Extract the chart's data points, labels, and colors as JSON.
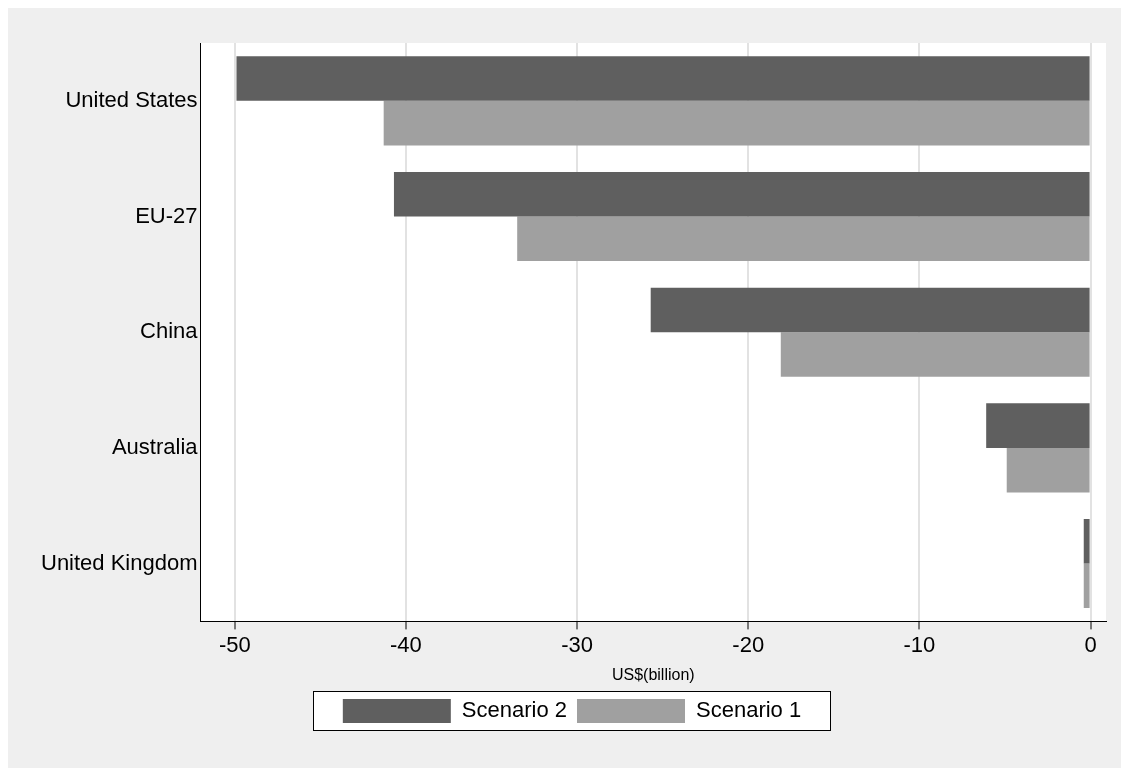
{
  "chart_data": {
    "type": "bar",
    "orientation": "horizontal",
    "xlabel": "US$(billion)",
    "categories": [
      "United States",
      "EU-27",
      "China",
      "Australia",
      "United Kingdom"
    ],
    "series": [
      {
        "name": "Scenario 2",
        "color": "#5f5f5f",
        "values": [
          -49.9,
          -40.7,
          -25.7,
          -6.1,
          -0.4
        ]
      },
      {
        "name": "Scenario 1",
        "color": "#a0a0a0",
        "values": [
          -41.3,
          -33.5,
          -18.1,
          -4.9,
          -0.4
        ]
      }
    ],
    "xlim": [
      -52,
      0.9
    ],
    "xticks": [
      -50,
      -40,
      -30,
      -20,
      -10,
      0
    ],
    "grid": "x",
    "legend": "bottom"
  }
}
